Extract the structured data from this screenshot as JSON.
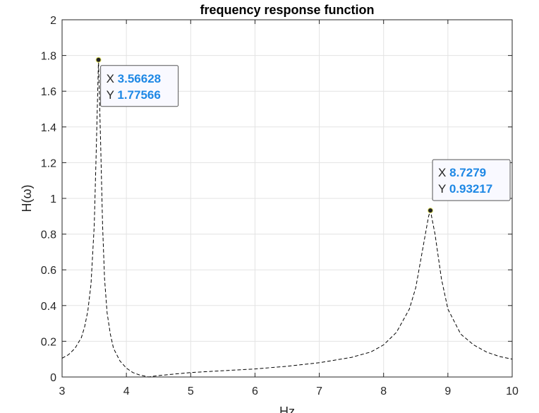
{
  "chart_data": {
    "type": "line",
    "title": "frequency response function",
    "xlabel": "Hz",
    "ylabel": "H(ω)",
    "xlim": [
      3,
      10
    ],
    "ylim": [
      0,
      2
    ],
    "xticks": [
      3,
      4,
      5,
      6,
      7,
      8,
      9,
      10
    ],
    "yticks": [
      0,
      0.2,
      0.4,
      0.6,
      0.8,
      1,
      1.2,
      1.4,
      1.6,
      1.8,
      2
    ],
    "xtick_labels": [
      "3",
      "4",
      "5",
      "6",
      "7",
      "8",
      "9",
      "10"
    ],
    "ytick_labels": [
      "0",
      "0.2",
      "0.4",
      "0.6",
      "0.8",
      "1",
      "1.2",
      "1.4",
      "1.6",
      "1.8",
      "2"
    ],
    "grid": true,
    "line_style": "dashed",
    "line_color": "#000000",
    "series": [
      {
        "x": [
          3.0,
          3.1,
          3.2,
          3.3,
          3.35,
          3.4,
          3.45,
          3.5,
          3.53,
          3.56628,
          3.6,
          3.63,
          3.66,
          3.7,
          3.75,
          3.8,
          3.9,
          4.0,
          4.1,
          4.2,
          4.3,
          4.35,
          4.4,
          4.5,
          4.7,
          5.0,
          5.5,
          6.0,
          6.5,
          7.0,
          7.5,
          7.8,
          8.0,
          8.2,
          8.4,
          8.5,
          8.6,
          8.7,
          8.7279,
          8.8,
          8.9,
          9.0,
          9.2,
          9.4,
          9.6,
          9.8,
          10.0
        ],
        "y": [
          0.105,
          0.125,
          0.16,
          0.22,
          0.28,
          0.37,
          0.52,
          0.85,
          1.25,
          1.77566,
          1.3,
          0.85,
          0.55,
          0.36,
          0.24,
          0.16,
          0.09,
          0.05,
          0.025,
          0.012,
          0.004,
          0.0,
          0.003,
          0.008,
          0.015,
          0.025,
          0.035,
          0.045,
          0.06,
          0.08,
          0.11,
          0.14,
          0.18,
          0.25,
          0.38,
          0.5,
          0.7,
          0.9,
          0.93217,
          0.8,
          0.55,
          0.38,
          0.24,
          0.18,
          0.14,
          0.115,
          0.1
        ]
      }
    ],
    "datatips": [
      {
        "x_label": "X",
        "x_value": "3.56628",
        "y_label": "Y",
        "y_value": "1.77566",
        "x": 3.56628,
        "y": 1.77566,
        "side": "right-below"
      },
      {
        "x_label": "X",
        "x_value": "8.7279",
        "y_label": "Y",
        "y_value": "0.93217",
        "x": 8.7279,
        "y": 0.93217,
        "side": "right-above"
      }
    ],
    "value_color": "#1e88e5"
  }
}
